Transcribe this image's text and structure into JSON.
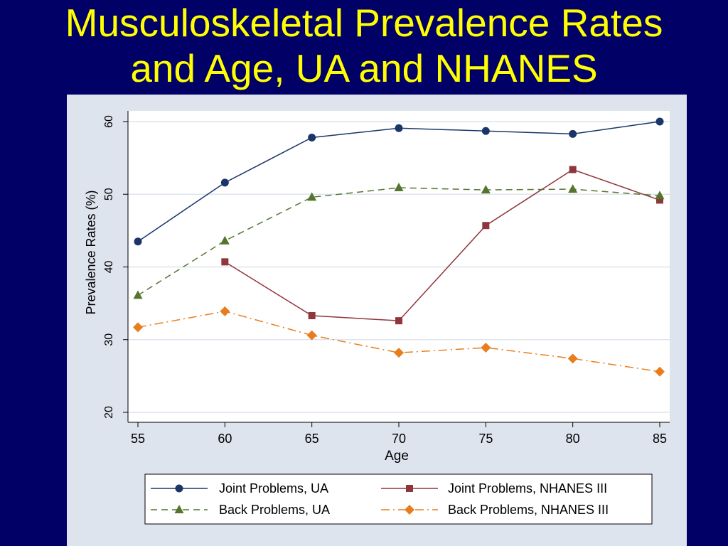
{
  "slide": {
    "title_line1": "Musculoskeletal Prevalence Rates",
    "title_line2": "and Age, UA and NHANES"
  },
  "colors": {
    "background": "#000066",
    "title": "#ffff00",
    "panel": "#dee4ee",
    "plot_area": "#ffffff",
    "gridline": "#dee4ee"
  },
  "chart_data": {
    "type": "line",
    "title": "",
    "xlabel": "Age",
    "ylabel": "Prevalence Rates (%)",
    "x": [
      55,
      60,
      65,
      70,
      75,
      80,
      85
    ],
    "xlim": [
      55,
      85
    ],
    "ylim": [
      20,
      60
    ],
    "xticks": [
      "55",
      "60",
      "65",
      "70",
      "75",
      "80",
      "85"
    ],
    "yticks": [
      "20",
      "30",
      "40",
      "50",
      "60"
    ],
    "grid": true,
    "legend_position": "bottom",
    "series": [
      {
        "name": "Joint Problems, UA",
        "color": "#1a3668",
        "marker": "circle",
        "dash": "solid",
        "values": [
          43.5,
          51.6,
          57.8,
          59.1,
          58.7,
          58.3,
          60.0
        ]
      },
      {
        "name": "Joint Problems, NHANES III",
        "color": "#90353b",
        "marker": "square",
        "dash": "solid",
        "values": [
          null,
          40.7,
          33.3,
          32.6,
          45.7,
          53.4,
          49.2
        ]
      },
      {
        "name": "Back Problems, UA",
        "color": "#55752f",
        "marker": "triangle",
        "dash": "dash",
        "values": [
          36.1,
          43.6,
          49.6,
          50.9,
          50.6,
          50.7,
          49.8
        ]
      },
      {
        "name": "Back Problems, NHANES III",
        "color": "#e87d1e",
        "marker": "diamond",
        "dash": "dashdot",
        "values": [
          31.7,
          33.9,
          30.6,
          28.2,
          28.9,
          27.4,
          25.6
        ]
      }
    ]
  }
}
